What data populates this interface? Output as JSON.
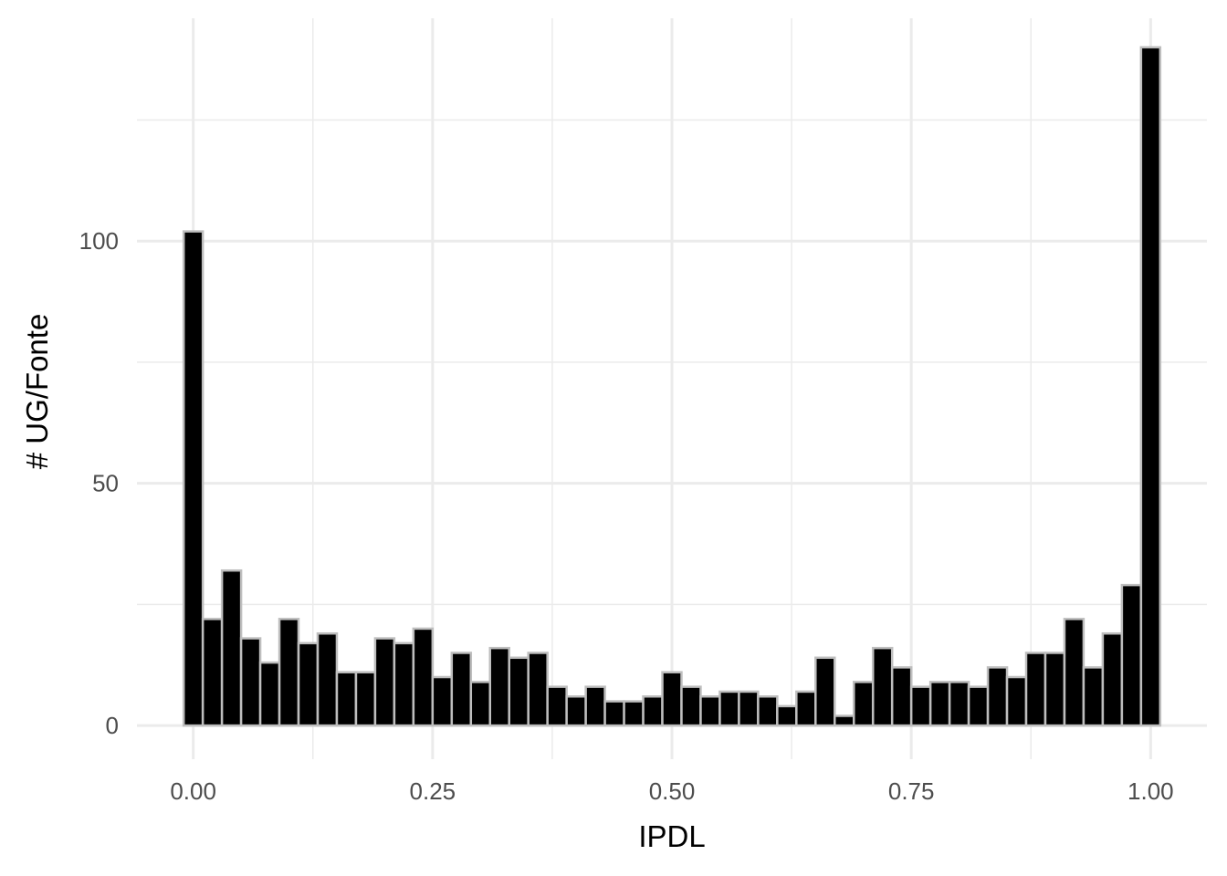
{
  "chart_data": {
    "type": "bar",
    "xlabel": "IPDL",
    "ylabel": "# UG/Fonte",
    "xlim": [
      -0.0588,
      1.0588
    ],
    "ylim": [
      -6.95,
      146
    ],
    "x_ticks": [
      0,
      0.25,
      0.5,
      0.75,
      1
    ],
    "x_tick_labels": [
      "0.00",
      "0.25",
      "0.50",
      "0.75",
      "1.00"
    ],
    "y_ticks": [
      0,
      50,
      100
    ],
    "y_tick_labels": [
      "0",
      "50",
      "100"
    ],
    "grid": true,
    "bin_width": 0.02,
    "bin_centers": [
      0.0,
      0.02,
      0.04,
      0.06,
      0.08,
      0.1,
      0.12,
      0.14,
      0.16,
      0.18,
      0.2,
      0.22,
      0.24,
      0.26,
      0.28,
      0.3,
      0.32,
      0.34,
      0.36,
      0.38,
      0.4,
      0.42,
      0.44,
      0.46,
      0.48,
      0.5,
      0.52,
      0.54,
      0.56,
      0.58,
      0.6,
      0.62,
      0.64,
      0.66,
      0.68,
      0.7,
      0.72,
      0.74,
      0.76,
      0.78,
      0.8,
      0.82,
      0.84,
      0.86,
      0.88,
      0.9,
      0.92,
      0.94,
      0.96,
      0.98,
      1.0
    ],
    "counts": [
      102,
      22,
      32,
      18,
      13,
      22,
      17,
      19,
      11,
      11,
      18,
      17,
      20,
      10,
      15,
      9,
      16,
      14,
      15,
      8,
      6,
      8,
      5,
      5,
      6,
      11,
      8,
      6,
      7,
      7,
      6,
      4,
      7,
      14,
      2,
      9,
      16,
      12,
      8,
      9,
      9,
      8,
      12,
      10,
      15,
      15,
      22,
      12,
      19,
      29,
      140
    ],
    "bar_fill": "#000000",
    "bar_outline": "#bebebe",
    "grid_color": "#ebebeb"
  }
}
